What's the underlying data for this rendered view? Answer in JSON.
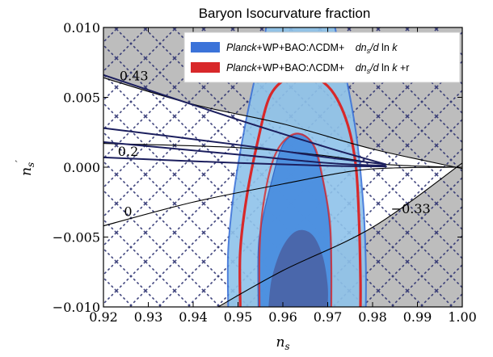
{
  "chart_data": {
    "type": "contour",
    "title": "Baryon Isocurvature fraction",
    "xlabel": "n_s",
    "ylabel": "n_s'",
    "xlim": [
      0.92,
      1.0
    ],
    "ylim": [
      -0.01,
      0.01
    ],
    "x_ticks": [
      {
        "value": 0.92,
        "label": "0.92"
      },
      {
        "value": 0.93,
        "label": "0.93"
      },
      {
        "value": 0.94,
        "label": "0.94"
      },
      {
        "value": 0.95,
        "label": "0.95"
      },
      {
        "value": 0.96,
        "label": "0.96"
      },
      {
        "value": 0.97,
        "label": "0.97"
      },
      {
        "value": 0.98,
        "label": "0.98"
      },
      {
        "value": 0.99,
        "label": "0.99"
      },
      {
        "value": 1.0,
        "label": "1.00"
      }
    ],
    "y_ticks": [
      {
        "value": 0.01,
        "label": "0.010"
      },
      {
        "value": 0.005,
        "label": "0.005"
      },
      {
        "value": 0.0,
        "label": "0.000"
      },
      {
        "value": -0.005,
        "label": "−0.005"
      },
      {
        "value": -0.01,
        "label": "−0.010"
      }
    ],
    "legend": {
      "placement": "top-right",
      "entries": [
        {
          "label": "Planck+WP+BAO:ΛCDM+   dn_s/d ln k",
          "color": "#3b73d9"
        },
        {
          "label": "Planck+WP+BAO:ΛCDM+   dn_s/d ln k +r",
          "color": "#d8282a"
        }
      ]
    },
    "contour_annotations": [
      {
        "text": "0.43",
        "x": 0.9268,
        "y": 0.0062
      },
      {
        "text": "0.2",
        "x": 0.9255,
        "y": 0.0008
      },
      {
        "text": "0",
        "x": 0.9255,
        "y": -0.0035
      },
      {
        "text": "−0.33",
        "x": 0.9885,
        "y": -0.0033
      }
    ],
    "contours": [
      {
        "name": "upper_bound",
        "points": [
          [
            0.92,
            0.0064
          ],
          [
            0.94,
            0.0045
          ],
          [
            0.96,
            0.0031
          ],
          [
            0.98,
            0.0013
          ],
          [
            1.0,
            -0.0001
          ]
        ]
      },
      {
        "name": "lower_bound",
        "points": [
          [
            0.945,
            -0.0101
          ],
          [
            0.96,
            -0.0074
          ],
          [
            0.98,
            -0.0043
          ],
          [
            1.0,
            0.0003
          ]
        ]
      },
      {
        "name": "thin_1",
        "points": [
          [
            0.92,
            0.0017
          ],
          [
            0.95,
            0.0014
          ],
          [
            0.97,
            0.0008
          ],
          [
            0.983,
            0.0002
          ],
          [
            0.999,
            0.0
          ]
        ]
      },
      {
        "name": "thin_2",
        "points": [
          [
            0.92,
            -0.0042
          ],
          [
            0.94,
            -0.0025
          ],
          [
            0.96,
            -0.0012
          ],
          [
            0.975,
            -0.0003
          ],
          [
            0.985,
            -5e-05
          ],
          [
            1.0,
            0.0
          ]
        ]
      },
      {
        "name": "dark_1",
        "points": [
          [
            0.92,
            0.0066
          ],
          [
            0.95,
            0.0034
          ],
          [
            0.97,
            0.0014
          ],
          [
            0.983,
            0.0002
          ]
        ]
      },
      {
        "name": "dark_2",
        "points": [
          [
            0.92,
            0.0028
          ],
          [
            0.95,
            0.0016
          ],
          [
            0.97,
            0.0007
          ],
          [
            0.983,
            0.0002
          ]
        ]
      },
      {
        "name": "dark_3",
        "points": [
          [
            0.92,
            0.0018
          ],
          [
            0.95,
            0.0009
          ],
          [
            0.97,
            0.0003
          ],
          [
            0.983,
            0.0001
          ]
        ]
      },
      {
        "name": "dark_4",
        "points": [
          [
            0.92,
            0.0007
          ],
          [
            0.95,
            0.0003
          ],
          [
            0.97,
            0.0001
          ],
          [
            0.983,
            5e-05
          ]
        ]
      }
    ],
    "regions": [
      {
        "name": "blue_1sigma",
        "center": [
          0.964,
          -0.0003
        ],
        "outline": [
          [
            0.9545,
            -0.01
          ],
          [
            0.9545,
            -0.006
          ],
          [
            0.9553,
            -0.004
          ],
          [
            0.9575,
            -0.001
          ],
          [
            0.96,
            0.0016
          ],
          [
            0.9635,
            0.0024
          ],
          [
            0.9665,
            0.0017
          ],
          [
            0.9685,
            -0.0004
          ],
          [
            0.97,
            -0.003
          ],
          [
            0.9707,
            -0.006
          ],
          [
            0.9707,
            -0.01
          ]
        ]
      },
      {
        "name": "blue_2sigma",
        "center": [
          0.963,
          0.0
        ],
        "outline": [
          [
            0.9478,
            -0.01
          ],
          [
            0.9478,
            -0.006
          ],
          [
            0.949,
            -0.002
          ],
          [
            0.951,
            0.002
          ],
          [
            0.9535,
            0.006
          ],
          [
            0.9558,
            0.009
          ],
          [
            0.9578,
            0.0104
          ],
          [
            0.97,
            0.0104
          ],
          [
            0.9722,
            0.009
          ],
          [
            0.9745,
            0.0058
          ],
          [
            0.9765,
            0.002
          ],
          [
            0.978,
            -0.003
          ],
          [
            0.9785,
            -0.007
          ],
          [
            0.9785,
            -0.01
          ]
        ]
      },
      {
        "name": "red_1sigma",
        "center": [
          0.9645,
          -0.0002
        ],
        "outline": [
          [
            0.9548,
            -0.01
          ],
          [
            0.9548,
            -0.006
          ],
          [
            0.9555,
            -0.003
          ],
          [
            0.9575,
            0.0002
          ],
          [
            0.96,
            0.0018
          ],
          [
            0.9635,
            0.0024
          ],
          [
            0.967,
            0.0015
          ],
          [
            0.969,
            -0.001
          ],
          [
            0.9705,
            -0.004
          ],
          [
            0.9708,
            -0.007
          ],
          [
            0.9708,
            -0.01
          ]
        ]
      },
      {
        "name": "red_2sigma",
        "center": [
          0.965,
          0.0003
        ],
        "outline": [
          [
            0.9505,
            -0.01
          ],
          [
            0.9505,
            -0.006
          ],
          [
            0.952,
            -0.002
          ],
          [
            0.9545,
            0.002
          ],
          [
            0.957,
            0.005
          ],
          [
            0.9605,
            0.0063
          ],
          [
            0.964,
            0.0066
          ],
          [
            0.968,
            0.0063
          ],
          [
            0.9715,
            0.0052
          ],
          [
            0.9745,
            0.003
          ],
          [
            0.9763,
            0.0
          ],
          [
            0.977,
            -0.004
          ],
          [
            0.9773,
            -0.008
          ],
          [
            0.9773,
            -0.01
          ]
        ]
      },
      {
        "name": "dark_core",
        "center": [
          0.9645,
          -0.0065
        ],
        "outline": [
          [
            0.9568,
            -0.01
          ],
          [
            0.9575,
            -0.008
          ],
          [
            0.9595,
            -0.006
          ],
          [
            0.962,
            -0.0048
          ],
          [
            0.9645,
            -0.0045
          ],
          [
            0.967,
            -0.005
          ],
          [
            0.969,
            -0.0065
          ],
          [
            0.97,
            -0.0085
          ],
          [
            0.97,
            -0.01
          ]
        ]
      }
    ]
  }
}
